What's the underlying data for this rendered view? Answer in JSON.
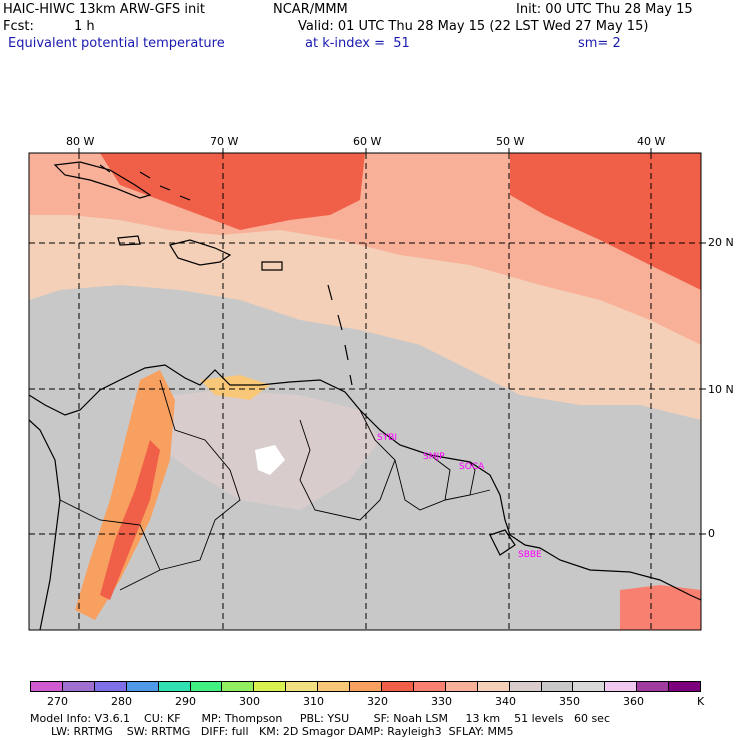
{
  "header": {
    "model": "HAIC-HIWC 13km ARW-GFS init",
    "org": "NCAR/MMM",
    "init": "Init: 00 UTC Thu 28 May 15",
    "fcst_label": "Fcst:",
    "fcst_value": "1 h",
    "valid": "Valid: 01 UTC Thu 28 May 15 (22 LST Wed 27 May 15)",
    "field": "Equivalent potential temperature",
    "level": "at k-index =  51",
    "smoothing": "sm= 2"
  },
  "map": {
    "lon_labels": [
      "80 W",
      "70 W",
      "60 W",
      "50 W",
      "40 W"
    ],
    "lat_labels": [
      "20 N",
      "10 N",
      "0"
    ],
    "stations": [
      "SYBI",
      "SMJP",
      "SOCA",
      "SBBE"
    ]
  },
  "colorbar": {
    "colors": [
      "#d05ad0",
      "#a070d0",
      "#8070e8",
      "#5098e8",
      "#30e0b0",
      "#40f080",
      "#90ee60",
      "#d8f050",
      "#f0e080",
      "#f8c878",
      "#f8a060",
      "#f06048",
      "#f88070",
      "#f8b098",
      "#f4d0b8",
      "#d8cccc",
      "#c8c8c8",
      "#d8d8d8",
      "#f0c8f0",
      "#a03ca0",
      "#7c007c"
    ],
    "tick_labels": [
      "270",
      "280",
      "290",
      "300",
      "310",
      "320",
      "330",
      "340",
      "350",
      "360"
    ],
    "units": "K"
  },
  "footer": {
    "line1": "Model Info: V3.6.1    CU: KF      MP: Thompson     PBL: YSU       SF: Noah LSM     13 km    51 levels   60 sec",
    "line2": "      LW: RRTMG    SW: RRTMG   DIFF: full   KM: 2D Smagor DAMP: Rayleigh3  SFLAY: MM5"
  }
}
